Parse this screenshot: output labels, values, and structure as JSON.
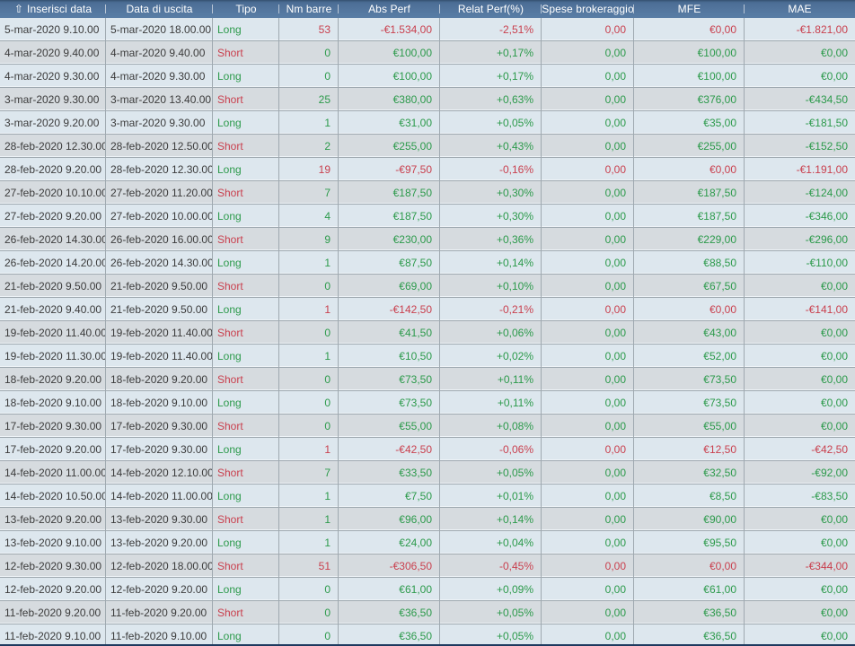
{
  "colors": {
    "green": "#2c9a4b",
    "red": "#c9404e",
    "header_edge": "#35506f",
    "header_bg_top": "#4b6d95",
    "header_bg_mid": "#53769e",
    "header_bg_bottom": "#587da5",
    "header_text": "#ffffff",
    "header_separator": "#b9c6d6",
    "row_light": "#dde7ee",
    "row_dark": "#d6dbdf",
    "grid_line": "#9fa9b0",
    "grid_highlight": "#eef3f7",
    "date_text": "#3b3b3b",
    "bottom_edge": "#1e3a5f"
  },
  "table": {
    "sort_icon": "⇧",
    "columns": [
      {
        "key": "entry",
        "label": "Inserisci data",
        "align": "left",
        "sorted": true
      },
      {
        "key": "exit",
        "label": "Data di uscita",
        "align": "left"
      },
      {
        "key": "tipo",
        "label": "Tipo",
        "align": "left"
      },
      {
        "key": "bars",
        "label": "Nm barre",
        "align": "right"
      },
      {
        "key": "abs",
        "label": "Abs Perf",
        "align": "right"
      },
      {
        "key": "rel",
        "label": "Relat Perf(%)",
        "align": "right"
      },
      {
        "key": "fees",
        "label": "Spese brokeraggio",
        "align": "right"
      },
      {
        "key": "mfe",
        "label": "MFE",
        "align": "right"
      },
      {
        "key": "mae",
        "label": "MAE",
        "align": "right"
      }
    ],
    "rows": [
      {
        "entry": "5-mar-2020 9.10.00",
        "exit": "5-mar-2020 18.00.00",
        "tipo": "Long",
        "bars": "53",
        "abs": "-€1.534,00",
        "rel": "-2,51%",
        "fees": "0,00",
        "mfe": "€0,00",
        "mae": "-€1.821,00",
        "sign": "neg"
      },
      {
        "entry": "4-mar-2020 9.40.00",
        "exit": "4-mar-2020 9.40.00",
        "tipo": "Short",
        "bars": "0",
        "abs": "€100,00",
        "rel": "+0,17%",
        "fees": "0,00",
        "mfe": "€100,00",
        "mae": "€0,00",
        "sign": "pos"
      },
      {
        "entry": "4-mar-2020 9.30.00",
        "exit": "4-mar-2020 9.30.00",
        "tipo": "Long",
        "bars": "0",
        "abs": "€100,00",
        "rel": "+0,17%",
        "fees": "0,00",
        "mfe": "€100,00",
        "mae": "€0,00",
        "sign": "pos"
      },
      {
        "entry": "3-mar-2020 9.30.00",
        "exit": "3-mar-2020 13.40.00",
        "tipo": "Short",
        "bars": "25",
        "abs": "€380,00",
        "rel": "+0,63%",
        "fees": "0,00",
        "mfe": "€376,00",
        "mae": "-€434,50",
        "sign": "pos"
      },
      {
        "entry": "3-mar-2020 9.20.00",
        "exit": "3-mar-2020 9.30.00",
        "tipo": "Long",
        "bars": "1",
        "abs": "€31,00",
        "rel": "+0,05%",
        "fees": "0,00",
        "mfe": "€35,00",
        "mae": "-€181,50",
        "sign": "pos"
      },
      {
        "entry": "28-feb-2020 12.30.00",
        "exit": "28-feb-2020 12.50.00",
        "tipo": "Short",
        "bars": "2",
        "abs": "€255,00",
        "rel": "+0,43%",
        "fees": "0,00",
        "mfe": "€255,00",
        "mae": "-€152,50",
        "sign": "pos"
      },
      {
        "entry": "28-feb-2020 9.20.00",
        "exit": "28-feb-2020 12.30.00",
        "tipo": "Long",
        "bars": "19",
        "abs": "-€97,50",
        "rel": "-0,16%",
        "fees": "0,00",
        "mfe": "€0,00",
        "mae": "-€1.191,00",
        "sign": "neg"
      },
      {
        "entry": "27-feb-2020 10.10.00",
        "exit": "27-feb-2020 11.20.00",
        "tipo": "Short",
        "bars": "7",
        "abs": "€187,50",
        "rel": "+0,30%",
        "fees": "0,00",
        "mfe": "€187,50",
        "mae": "-€124,00",
        "sign": "pos"
      },
      {
        "entry": "27-feb-2020 9.20.00",
        "exit": "27-feb-2020 10.00.00",
        "tipo": "Long",
        "bars": "4",
        "abs": "€187,50",
        "rel": "+0,30%",
        "fees": "0,00",
        "mfe": "€187,50",
        "mae": "-€346,00",
        "sign": "pos"
      },
      {
        "entry": "26-feb-2020 14.30.00",
        "exit": "26-feb-2020 16.00.00",
        "tipo": "Short",
        "bars": "9",
        "abs": "€230,00",
        "rel": "+0,36%",
        "fees": "0,00",
        "mfe": "€229,00",
        "mae": "-€296,00",
        "sign": "pos"
      },
      {
        "entry": "26-feb-2020 14.20.00",
        "exit": "26-feb-2020 14.30.00",
        "tipo": "Long",
        "bars": "1",
        "abs": "€87,50",
        "rel": "+0,14%",
        "fees": "0,00",
        "mfe": "€88,50",
        "mae": "-€110,00",
        "sign": "pos"
      },
      {
        "entry": "21-feb-2020 9.50.00",
        "exit": "21-feb-2020 9.50.00",
        "tipo": "Short",
        "bars": "0",
        "abs": "€69,00",
        "rel": "+0,10%",
        "fees": "0,00",
        "mfe": "€67,50",
        "mae": "€0,00",
        "sign": "pos"
      },
      {
        "entry": "21-feb-2020 9.40.00",
        "exit": "21-feb-2020 9.50.00",
        "tipo": "Long",
        "bars": "1",
        "abs": "-€142,50",
        "rel": "-0,21%",
        "fees": "0,00",
        "mfe": "€0,00",
        "mae": "-€141,00",
        "sign": "neg"
      },
      {
        "entry": "19-feb-2020 11.40.00",
        "exit": "19-feb-2020 11.40.00",
        "tipo": "Short",
        "bars": "0",
        "abs": "€41,50",
        "rel": "+0,06%",
        "fees": "0,00",
        "mfe": "€43,00",
        "mae": "€0,00",
        "sign": "pos"
      },
      {
        "entry": "19-feb-2020 11.30.00",
        "exit": "19-feb-2020 11.40.00",
        "tipo": "Long",
        "bars": "1",
        "abs": "€10,50",
        "rel": "+0,02%",
        "fees": "0,00",
        "mfe": "€52,00",
        "mae": "€0,00",
        "sign": "pos"
      },
      {
        "entry": "18-feb-2020 9.20.00",
        "exit": "18-feb-2020 9.20.00",
        "tipo": "Short",
        "bars": "0",
        "abs": "€73,50",
        "rel": "+0,11%",
        "fees": "0,00",
        "mfe": "€73,50",
        "mae": "€0,00",
        "sign": "pos"
      },
      {
        "entry": "18-feb-2020 9.10.00",
        "exit": "18-feb-2020 9.10.00",
        "tipo": "Long",
        "bars": "0",
        "abs": "€73,50",
        "rel": "+0,11%",
        "fees": "0,00",
        "mfe": "€73,50",
        "mae": "€0,00",
        "sign": "pos"
      },
      {
        "entry": "17-feb-2020 9.30.00",
        "exit": "17-feb-2020 9.30.00",
        "tipo": "Short",
        "bars": "0",
        "abs": "€55,00",
        "rel": "+0,08%",
        "fees": "0,00",
        "mfe": "€55,00",
        "mae": "€0,00",
        "sign": "pos"
      },
      {
        "entry": "17-feb-2020 9.20.00",
        "exit": "17-feb-2020 9.30.00",
        "tipo": "Long",
        "bars": "1",
        "abs": "-€42,50",
        "rel": "-0,06%",
        "fees": "0,00",
        "mfe": "€12,50",
        "mae": "-€42,50",
        "sign": "neg"
      },
      {
        "entry": "14-feb-2020 11.00.00",
        "exit": "14-feb-2020 12.10.00",
        "tipo": "Short",
        "bars": "7",
        "abs": "€33,50",
        "rel": "+0,05%",
        "fees": "0,00",
        "mfe": "€32,50",
        "mae": "-€92,00",
        "sign": "pos"
      },
      {
        "entry": "14-feb-2020 10.50.00",
        "exit": "14-feb-2020 11.00.00",
        "tipo": "Long",
        "bars": "1",
        "abs": "€7,50",
        "rel": "+0,01%",
        "fees": "0,00",
        "mfe": "€8,50",
        "mae": "-€83,50",
        "sign": "pos"
      },
      {
        "entry": "13-feb-2020 9.20.00",
        "exit": "13-feb-2020 9.30.00",
        "tipo": "Short",
        "bars": "1",
        "abs": "€96,00",
        "rel": "+0,14%",
        "fees": "0,00",
        "mfe": "€90,00",
        "mae": "€0,00",
        "sign": "pos"
      },
      {
        "entry": "13-feb-2020 9.10.00",
        "exit": "13-feb-2020 9.20.00",
        "tipo": "Long",
        "bars": "1",
        "abs": "€24,00",
        "rel": "+0,04%",
        "fees": "0,00",
        "mfe": "€95,50",
        "mae": "€0,00",
        "sign": "pos"
      },
      {
        "entry": "12-feb-2020 9.30.00",
        "exit": "12-feb-2020 18.00.00",
        "tipo": "Short",
        "bars": "51",
        "abs": "-€306,50",
        "rel": "-0,45%",
        "fees": "0,00",
        "mfe": "€0,00",
        "mae": "-€344,00",
        "sign": "neg"
      },
      {
        "entry": "12-feb-2020 9.20.00",
        "exit": "12-feb-2020 9.20.00",
        "tipo": "Long",
        "bars": "0",
        "abs": "€61,00",
        "rel": "+0,09%",
        "fees": "0,00",
        "mfe": "€61,00",
        "mae": "€0,00",
        "sign": "pos"
      },
      {
        "entry": "11-feb-2020 9.20.00",
        "exit": "11-feb-2020 9.20.00",
        "tipo": "Short",
        "bars": "0",
        "abs": "€36,50",
        "rel": "+0,05%",
        "fees": "0,00",
        "mfe": "€36,50",
        "mae": "€0,00",
        "sign": "pos"
      },
      {
        "entry": "11-feb-2020 9.10.00",
        "exit": "11-feb-2020 9.10.00",
        "tipo": "Long",
        "bars": "0",
        "abs": "€36,50",
        "rel": "+0,05%",
        "fees": "0,00",
        "mfe": "€36,50",
        "mae": "€0,00",
        "sign": "pos"
      }
    ]
  }
}
